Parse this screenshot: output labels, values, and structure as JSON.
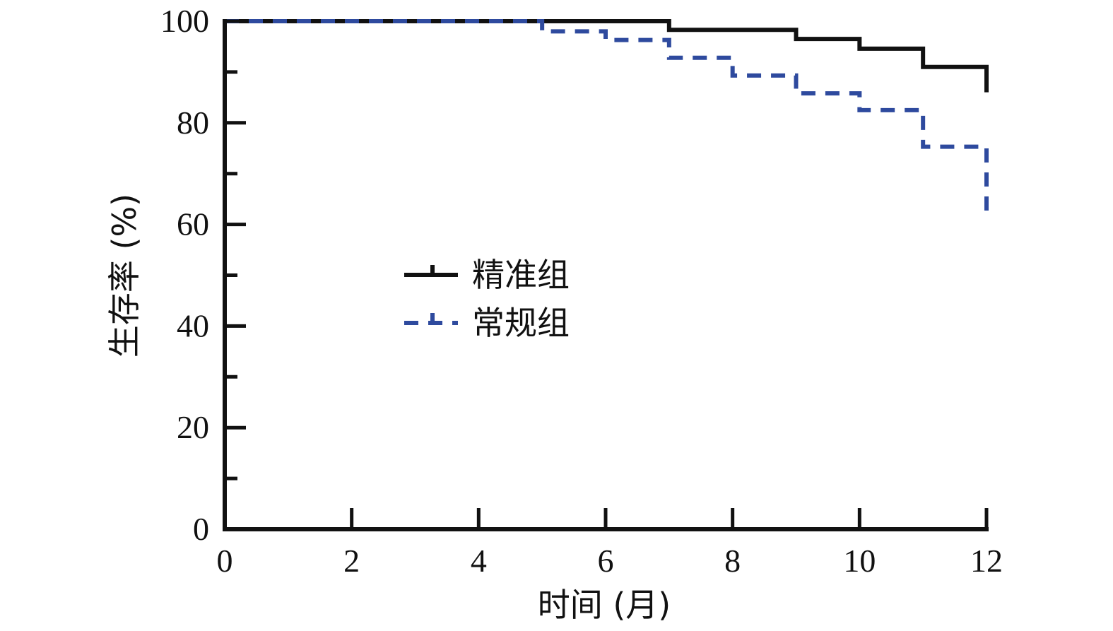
{
  "chart_data": {
    "type": "line",
    "step": true,
    "xlabel": "时间 (月)",
    "ylabel": "生存率 (%)",
    "xlim": [
      0,
      12
    ],
    "ylim": [
      0,
      100
    ],
    "xticks": [
      0,
      2,
      4,
      6,
      8,
      10,
      12
    ],
    "yticks": [
      0,
      20,
      40,
      60,
      80,
      100
    ],
    "grid": false,
    "legend_position": "center-left",
    "series": [
      {
        "name": "精准组",
        "color": "#111111",
        "dash": "solid",
        "x": [
          0,
          7,
          9,
          10,
          11,
          12
        ],
        "y": [
          100,
          98.3,
          96.5,
          94.6,
          91.0,
          86.0
        ]
      },
      {
        "name": "常规组",
        "color": "#2e4a9e",
        "dash": "dashed",
        "x": [
          0,
          5,
          6,
          7,
          8,
          9,
          10,
          11,
          12
        ],
        "y": [
          100,
          98.0,
          96.3,
          92.8,
          89.3,
          85.8,
          82.5,
          75.3,
          62.5
        ]
      }
    ]
  }
}
